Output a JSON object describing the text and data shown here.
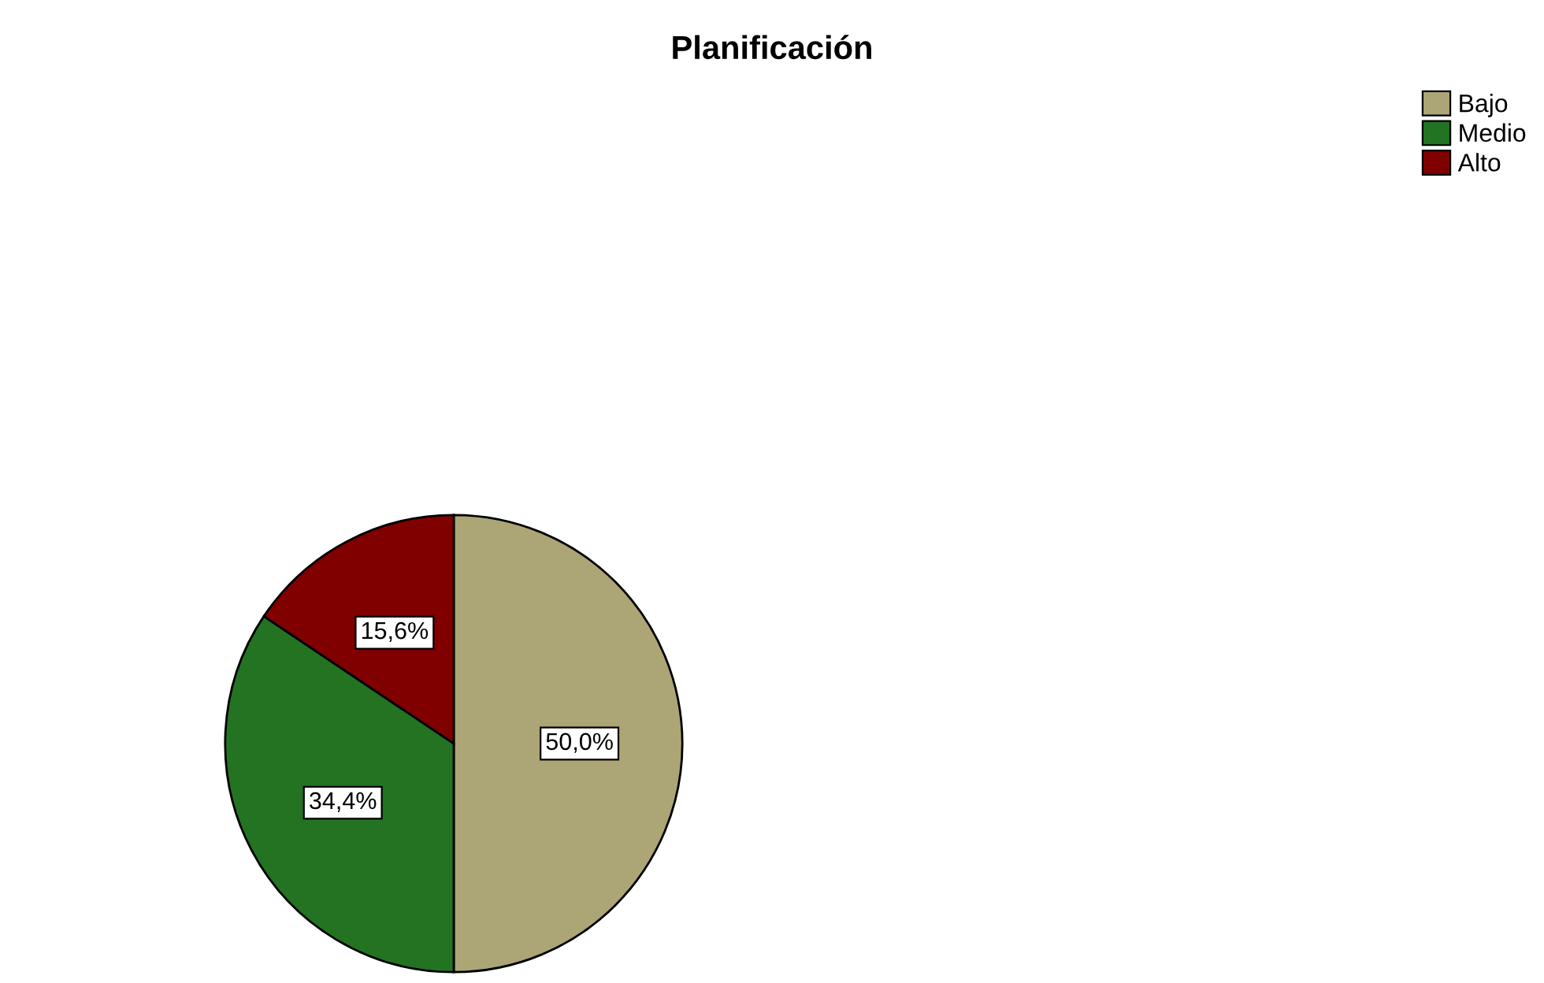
{
  "chart_data": {
    "type": "pie",
    "title": "Planificación",
    "categories": [
      "Bajo",
      "Medio",
      "Alto"
    ],
    "values": [
      50.0,
      34.4,
      15.6
    ],
    "colors": [
      "#aca576",
      "#237323",
      "#800000"
    ],
    "value_labels": [
      "50,0%",
      "34,4%",
      "15,6%"
    ],
    "legend": "top right"
  }
}
